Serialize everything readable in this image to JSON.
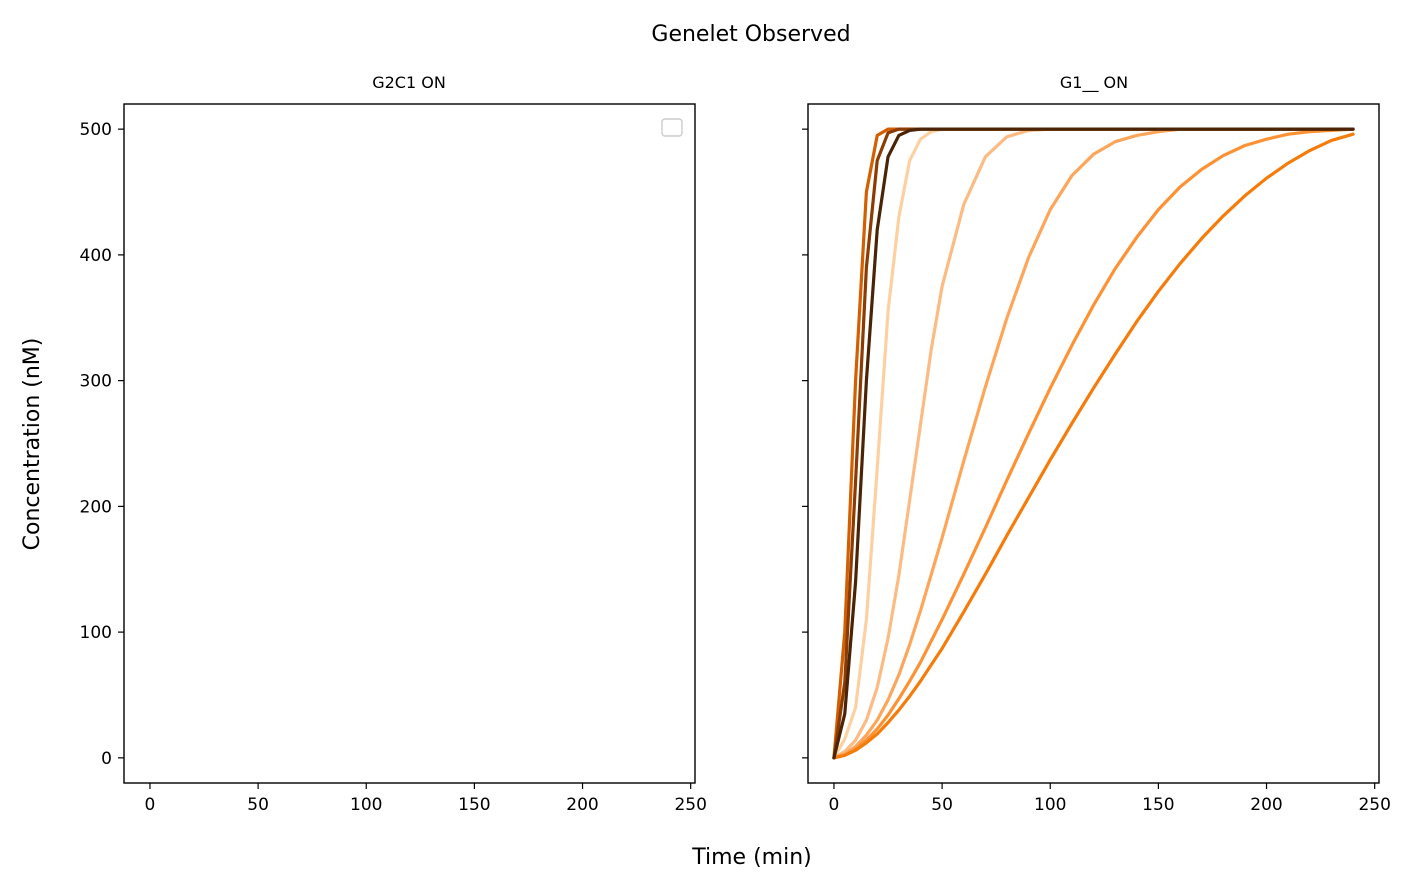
{
  "figure": {
    "suptitle": "Genelet Observed",
    "xlabel": "Time (min)",
    "ylabel": "Concentration (nM)"
  },
  "chart_data": [
    {
      "type": "line",
      "title": "G2C1 ON",
      "xlim": [
        -12,
        252
      ],
      "ylim": [
        -20,
        520
      ],
      "xticks": [
        0,
        50,
        100,
        150,
        200,
        250
      ],
      "yticks": [
        0,
        100,
        200,
        300,
        400,
        500
      ],
      "legend": "top-right (empty)",
      "grid": false,
      "series": []
    },
    {
      "type": "line",
      "title": "G1__ ON",
      "xlim": [
        -12,
        252
      ],
      "ylim": [
        -20,
        520
      ],
      "xticks": [
        0,
        50,
        100,
        150,
        200,
        250
      ],
      "yticks": [
        0,
        100,
        200,
        300,
        400,
        500
      ],
      "legend": "none",
      "grid": false,
      "x": [
        0,
        5,
        10,
        15,
        20,
        25,
        30,
        35,
        40,
        45,
        50,
        60,
        70,
        80,
        90,
        100,
        110,
        120,
        130,
        140,
        150,
        160,
        170,
        180,
        190,
        200,
        210,
        220,
        230,
        240
      ],
      "series": [
        {
          "color": "#fdd0a2",
          "values": [
            0,
            15,
            40,
            110,
            230,
            355,
            430,
            475,
            492,
            498,
            500,
            500,
            500,
            500,
            500,
            500,
            500,
            500,
            500,
            500,
            500,
            500,
            500,
            500,
            500,
            500,
            500,
            500,
            500,
            500
          ]
        },
        {
          "color": "#fdbb84",
          "values": [
            0,
            5,
            14,
            30,
            56,
            95,
            145,
            205,
            265,
            325,
            375,
            440,
            478,
            494,
            499,
            500,
            500,
            500,
            500,
            500,
            500,
            500,
            500,
            500,
            500,
            500,
            500,
            500,
            500,
            500
          ]
        },
        {
          "color": "#fda65a",
          "values": [
            0,
            3,
            9,
            18,
            30,
            46,
            66,
            90,
            117,
            146,
            175,
            236,
            295,
            350,
            398,
            436,
            463,
            480,
            490,
            495,
            498,
            500,
            500,
            500,
            500,
            500,
            500,
            500,
            500,
            500
          ]
        },
        {
          "color": "#fd9235",
          "values": [
            0,
            2,
            7,
            14,
            23,
            34,
            47,
            61,
            76,
            93,
            110,
            146,
            183,
            221,
            258,
            294,
            328,
            360,
            389,
            414,
            436,
            454,
            468,
            479,
            487,
            492,
            496,
            498,
            499,
            500
          ]
        },
        {
          "color": "#f57c0a",
          "values": [
            0,
            2,
            6,
            12,
            19,
            28,
            38,
            49,
            61,
            74,
            87,
            116,
            146,
            177,
            207,
            237,
            266,
            294,
            321,
            347,
            371,
            393,
            413,
            431,
            447,
            461,
            473,
            483,
            491,
            496
          ]
        },
        {
          "color": "#d45f00",
          "values": [
            0,
            100,
            300,
            450,
            495,
            500,
            500,
            500,
            500,
            500,
            500,
            500,
            500,
            500,
            500,
            500,
            500,
            500,
            500,
            500,
            500,
            500,
            500,
            500,
            500,
            500,
            500,
            500,
            500,
            500
          ]
        },
        {
          "color": "#8c3b02",
          "values": [
            0,
            60,
            220,
            390,
            475,
            497,
            500,
            500,
            500,
            500,
            500,
            500,
            500,
            500,
            500,
            500,
            500,
            500,
            500,
            500,
            500,
            500,
            500,
            500,
            500,
            500,
            500,
            500,
            500,
            500
          ]
        },
        {
          "color": "#4a2405",
          "values": [
            0,
            35,
            140,
            300,
            420,
            478,
            495,
            499,
            500,
            500,
            500,
            500,
            500,
            500,
            500,
            500,
            500,
            500,
            500,
            500,
            500,
            500,
            500,
            500,
            500,
            500,
            500,
            500,
            500,
            500
          ]
        }
      ]
    }
  ]
}
